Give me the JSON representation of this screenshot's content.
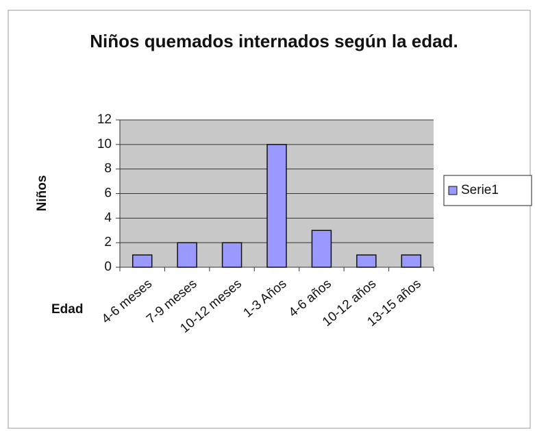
{
  "chart_data": {
    "type": "bar",
    "title": "Niños quemados internados según la edad.",
    "x_label": "Edad",
    "y_label": "Niños",
    "categories": [
      "4-6 meses",
      "7-9 meses",
      "10-12 meses",
      "1-3 Años",
      "4-6 años",
      "10-12 años",
      "13-15 años"
    ],
    "series": [
      {
        "name": "Serie1",
        "color": "#9999ff",
        "values": [
          1,
          2,
          2,
          10,
          3,
          1,
          1
        ]
      }
    ],
    "ylim": [
      0,
      12
    ],
    "yticks": [
      0,
      2,
      4,
      6,
      8,
      10,
      12
    ],
    "grid": true,
    "legend": "right"
  }
}
